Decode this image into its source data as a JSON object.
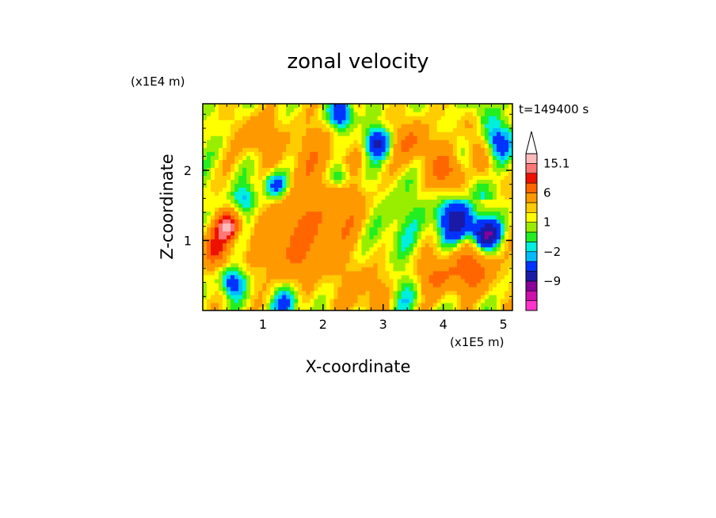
{
  "chart_data": {
    "type": "heatmap",
    "title": "zonal velocity",
    "time_label": "t=149400 s",
    "x_axis": {
      "label": "X-coordinate",
      "scale_label": "(x1E5 m)",
      "range": [
        0,
        5.15
      ],
      "ticks": [
        1,
        2,
        3,
        4,
        5
      ],
      "tick_labels": [
        "1",
        "2",
        "3",
        "4",
        "5"
      ]
    },
    "y_axis": {
      "label": "Z-coordinate",
      "scale_label": "(x1E4 m)",
      "range": [
        0,
        2.95
      ],
      "ticks": [
        1,
        2
      ],
      "tick_labels": [
        "1",
        "2"
      ]
    },
    "colorbar": {
      "levels": [
        -15,
        -12,
        -9,
        -6,
        -3,
        -2,
        -1,
        0,
        1,
        2,
        3,
        6,
        9,
        12,
        15.1
      ],
      "labeled_levels": [
        {
          "value": 15.1,
          "label": "15.1"
        },
        {
          "value": 6,
          "label": "6"
        },
        {
          "value": 1,
          "label": "1"
        },
        {
          "value": -2,
          "label": "−2"
        },
        {
          "value": -9,
          "label": "−9"
        }
      ],
      "colors": [
        "#ff33cc",
        "#cc11aa",
        "#880099",
        "#1a1aa6",
        "#0033ff",
        "#00bbff",
        "#00eedd",
        "#22ee22",
        "#99ee00",
        "#ffff00",
        "#ffcc00",
        "#ff9900",
        "#ff6600",
        "#ee1100",
        "#ff7777",
        "#ffbbbb"
      ],
      "extend_max": true
    },
    "features": [
      {
        "x": 0.4,
        "z": 1.2,
        "u": 13,
        "s": 0.18
      },
      {
        "x": 0.2,
        "z": 0.9,
        "u": 7,
        "s": 0.25
      },
      {
        "x": 1.5,
        "z": 1.0,
        "u": 5,
        "s": 0.6
      },
      {
        "x": 2.4,
        "z": 1.4,
        "u": 4,
        "s": 0.55
      },
      {
        "x": 1.8,
        "z": 2.2,
        "u": 3,
        "s": 0.5
      },
      {
        "x": 3.1,
        "z": 1.3,
        "u": -2,
        "s": 0.55
      },
      {
        "x": 2.9,
        "z": 0.9,
        "u": -1,
        "s": 0.5
      },
      {
        "x": 2.8,
        "z": 0.3,
        "u": 3,
        "s": 0.5
      },
      {
        "x": 4.2,
        "z": 1.3,
        "u": -9,
        "s": 0.3
      },
      {
        "x": 4.7,
        "z": 1.1,
        "u": -11,
        "s": 0.22
      },
      {
        "x": 4.5,
        "z": 0.6,
        "u": 6,
        "s": 0.35
      },
      {
        "x": 3.9,
        "z": 0.5,
        "u": 5,
        "s": 0.3
      },
      {
        "x": 2.9,
        "z": 2.4,
        "u": -8,
        "s": 0.2
      },
      {
        "x": 2.3,
        "z": 2.8,
        "u": -7,
        "s": 0.2
      },
      {
        "x": 3.5,
        "z": 2.4,
        "u": 5,
        "s": 0.3
      },
      {
        "x": 4.1,
        "z": 2.0,
        "u": 6,
        "s": 0.3
      },
      {
        "x": 1.2,
        "z": 1.8,
        "u": -6,
        "s": 0.2
      },
      {
        "x": 2.3,
        "z": 1.9,
        "u": -5,
        "s": 0.18
      },
      {
        "x": 0.5,
        "z": 0.4,
        "u": -6,
        "s": 0.2
      },
      {
        "x": 1.4,
        "z": 0.1,
        "u": -5,
        "s": 0.25
      },
      {
        "x": 3.3,
        "z": 0.2,
        "u": -3,
        "s": 0.3
      },
      {
        "x": 0.7,
        "z": 1.6,
        "u": -4,
        "s": 0.2
      },
      {
        "x": 4.9,
        "z": 2.4,
        "u": -5,
        "s": 0.25
      },
      {
        "x": 0.9,
        "z": 2.5,
        "u": 4,
        "s": 0.3
      }
    ]
  }
}
